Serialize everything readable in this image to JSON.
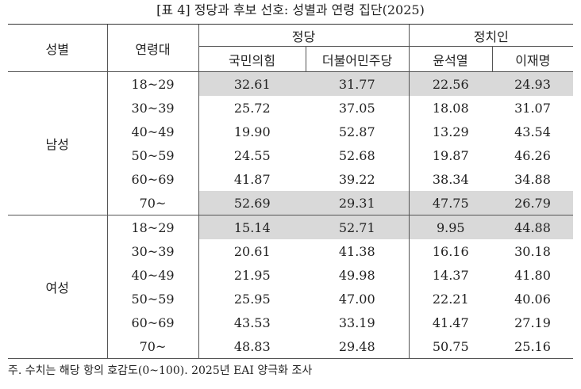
{
  "title": "[표 4] 정당과 후보 선호: 성별과 연령 집단(2025)",
  "header": {
    "sex": "성별",
    "age": "연령대",
    "party_group": "정당",
    "candidate_group": "정치인",
    "columns": [
      "국민의힘",
      "더불어민주당",
      "윤석열",
      "이재명"
    ]
  },
  "groups": [
    {
      "name": "남성",
      "rows": [
        {
          "age": "18~29",
          "values": [
            "32.61",
            "31.77",
            "22.56",
            "24.93"
          ],
          "highlighted": true
        },
        {
          "age": "30~39",
          "values": [
            "25.72",
            "37.05",
            "18.08",
            "31.07"
          ],
          "highlighted": false
        },
        {
          "age": "40~49",
          "values": [
            "19.90",
            "52.87",
            "13.29",
            "43.54"
          ],
          "highlighted": false
        },
        {
          "age": "50~59",
          "values": [
            "24.55",
            "52.68",
            "19.87",
            "46.26"
          ],
          "highlighted": false
        },
        {
          "age": "60~69",
          "values": [
            "41.87",
            "39.22",
            "38.34",
            "34.88"
          ],
          "highlighted": false
        },
        {
          "age": "70~",
          "values": [
            "52.69",
            "29.31",
            "47.75",
            "26.79"
          ],
          "highlighted": true
        }
      ]
    },
    {
      "name": "여성",
      "rows": [
        {
          "age": "18~29",
          "values": [
            "15.14",
            "52.71",
            "9.95",
            "44.88"
          ],
          "highlighted": true
        },
        {
          "age": "30~39",
          "values": [
            "20.61",
            "41.38",
            "16.16",
            "30.18"
          ],
          "highlighted": false
        },
        {
          "age": "40~49",
          "values": [
            "21.95",
            "49.98",
            "14.37",
            "41.80"
          ],
          "highlighted": false
        },
        {
          "age": "50~59",
          "values": [
            "25.95",
            "47.00",
            "22.21",
            "40.06"
          ],
          "highlighted": false
        },
        {
          "age": "60~69",
          "values": [
            "43.53",
            "33.19",
            "41.47",
            "27.19"
          ],
          "highlighted": false
        },
        {
          "age": "70~",
          "values": [
            "48.83",
            "29.48",
            "50.75",
            "25.16"
          ],
          "highlighted": false
        }
      ]
    }
  ],
  "footnote": "주. 수치는 해당 항의 호감도(0~100). 2025년 EAI 양극화 조사"
}
